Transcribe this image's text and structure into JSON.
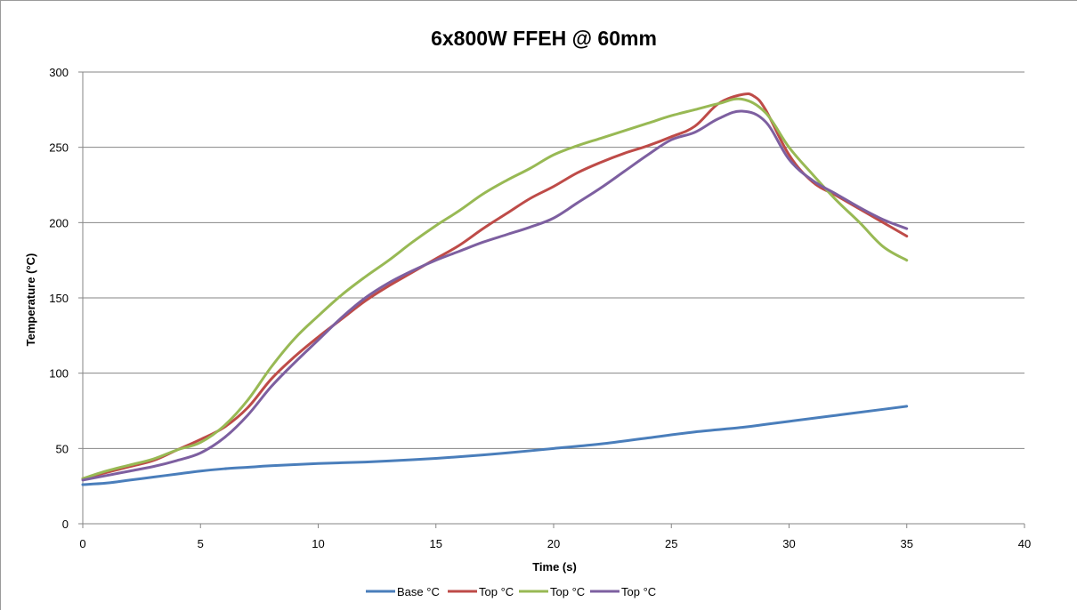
{
  "chart_data": {
    "type": "line",
    "title": "6x800W FFEH @ 60mm",
    "xlabel": "Time (s)",
    "ylabel": "Temperature (°C)",
    "xlim": [
      0,
      40
    ],
    "ylim": [
      0,
      300
    ],
    "x_ticks": [
      0,
      5,
      10,
      15,
      20,
      25,
      30,
      35,
      40
    ],
    "y_ticks": [
      0,
      50,
      100,
      150,
      200,
      250,
      300
    ],
    "grid": "horizontal",
    "legend_position": "bottom",
    "colors": {
      "base": "#4a7ebb",
      "top1": "#be4b48",
      "top2": "#98b954",
      "top3": "#7d5fa0",
      "gridline": "#868686",
      "axis": "#868686"
    },
    "series": [
      {
        "name": "Base °C",
        "color": "#4a7ebb",
        "x": [
          0,
          1,
          2,
          3,
          4,
          5,
          6,
          7,
          8,
          10,
          12,
          14,
          16,
          18,
          20,
          22,
          24,
          26,
          28,
          29,
          30,
          32,
          34,
          35
        ],
        "y": [
          26,
          27,
          29,
          31,
          33,
          35,
          36.5,
          37.5,
          38.5,
          40,
          41,
          42.5,
          44.5,
          47,
          50,
          53,
          57,
          61,
          64,
          66,
          68,
          72,
          76,
          78
        ]
      },
      {
        "name": "Top °C",
        "color": "#be4b48",
        "x": [
          0,
          1,
          2,
          3,
          4,
          5,
          6,
          7,
          8,
          9,
          10,
          11,
          12,
          13,
          14,
          15,
          16,
          17,
          18,
          19,
          20,
          21,
          22,
          23,
          24,
          25,
          26,
          27,
          28,
          28.5,
          29,
          30,
          31,
          32,
          33,
          34,
          35
        ],
        "y": [
          30,
          34,
          38,
          42,
          49,
          56,
          64,
          77,
          96,
          111,
          124,
          136,
          148,
          158,
          167,
          176,
          185,
          196,
          206,
          216,
          224,
          233,
          240,
          246,
          251,
          257,
          264,
          279,
          285,
          284,
          275,
          245,
          227,
          218,
          209,
          200,
          191
        ]
      },
      {
        "name": "Top °C",
        "color": "#98b954",
        "x": [
          0,
          1,
          2,
          3,
          4,
          5,
          6,
          7,
          8,
          9,
          10,
          11,
          12,
          13,
          14,
          15,
          16,
          17,
          18,
          19,
          20,
          21,
          22,
          23,
          24,
          25,
          26,
          27,
          28,
          29,
          30,
          31,
          32,
          33,
          34,
          35
        ],
        "y": [
          30,
          35,
          39,
          43,
          49,
          54,
          65,
          82,
          104,
          123,
          138,
          152,
          164,
          175,
          187,
          198,
          208,
          219,
          228,
          236,
          245,
          251,
          256,
          261,
          266,
          271,
          275,
          279,
          282,
          273,
          250,
          232,
          215,
          200,
          184,
          175
        ]
      },
      {
        "name": "Top °C",
        "color": "#7d5fa0",
        "x": [
          0,
          1,
          2,
          3,
          4,
          5,
          6,
          7,
          8,
          9,
          10,
          11,
          12,
          13,
          14,
          15,
          16,
          17,
          18,
          19,
          20,
          21,
          22,
          23,
          24,
          25,
          26,
          27,
          28,
          29,
          30,
          31,
          32,
          33,
          34,
          35
        ],
        "y": [
          29,
          32,
          35,
          38,
          42,
          47,
          57,
          72,
          91,
          107,
          122,
          137,
          150,
          160,
          168,
          175,
          181,
          187,
          192,
          197,
          203,
          213,
          223,
          234,
          245,
          255,
          260,
          269,
          274,
          267,
          242,
          228,
          219,
          210,
          202,
          196
        ]
      }
    ]
  }
}
